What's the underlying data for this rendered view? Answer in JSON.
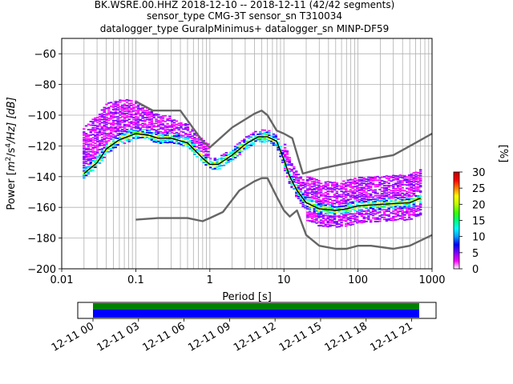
{
  "chart_data": [
    {
      "type": "heatmap",
      "title_lines": [
        "BK.WSRE.00.HHZ   2018-12-10 -- 2018-12-11  (42/42 segments)",
        "sensor_type CMG-3T sensor_sn T310034",
        "datalogger_type GuralpMinimus+ datalogger_sn MINP-DF59"
      ],
      "xlabel": "Period [s]",
      "ylabel": "Power [m2/s4/Hz] [dB]",
      "ylabel_parts": {
        "before": "Power [",
        "m": "m",
        "exp1": "2",
        "mid": "/s",
        "exp2": "4",
        "tail": "/Hz] [dB]"
      },
      "x_scale": "log",
      "xlim": [
        0.01,
        1000
      ],
      "ylim": [
        -200,
        -50
      ],
      "x_ticks": [
        0.01,
        0.1,
        1,
        10,
        100,
        1000
      ],
      "x_tick_labels": [
        "0.01",
        "0.1",
        "1",
        "10",
        "100",
        "1000"
      ],
      "y_ticks": [
        -200,
        -180,
        -160,
        -140,
        -120,
        -100,
        -80,
        -60
      ],
      "y_tick_labels": [
        "−200",
        "−180",
        "−160",
        "−140",
        "−120",
        "−100",
        "−80",
        "−60"
      ],
      "grid": true,
      "colorbar": {
        "label": "[%]",
        "range": [
          0,
          30
        ],
        "ticks": [
          0,
          5,
          10,
          15,
          20,
          25,
          30
        ],
        "tick_labels": [
          "0",
          "5",
          "10",
          "15",
          "20",
          "25",
          "30"
        ],
        "colormap": [
          "#ffffff",
          "#ff00ff",
          "#8000ff",
          "#0000ff",
          "#00a0ff",
          "#00ffff",
          "#00ff80",
          "#40ff00",
          "#c0ff00",
          "#ffff00",
          "#ff8000",
          "#ff0000",
          "#c00000"
        ]
      },
      "series": [
        {
          "name": "mode",
          "color": "#000000",
          "x": [
            0.02,
            0.025,
            0.03,
            0.04,
            0.06,
            0.1,
            0.15,
            0.2,
            0.3,
            0.5,
            0.8,
            1.0,
            1.3,
            2.0,
            3.0,
            4.5,
            6.0,
            8.0,
            10,
            12,
            15,
            20,
            30,
            50,
            70,
            100,
            200,
            500,
            700
          ],
          "y": [
            -138,
            -134,
            -131,
            -122,
            -116,
            -112,
            -113,
            -115,
            -115,
            -118,
            -128,
            -132,
            -132,
            -126,
            -119,
            -114,
            -114,
            -117,
            -129,
            -140,
            -149,
            -157,
            -161,
            -162,
            -161,
            -159,
            -158,
            -157,
            -154
          ]
        },
        {
          "name": "noise-model-high",
          "color": "#666666",
          "x": [
            0.1,
            0.17,
            0.4,
            0.8,
            1.0,
            2.0,
            4.0,
            5.0,
            6.0,
            8.0,
            10,
            13,
            18,
            30,
            60,
            100,
            300,
            600,
            1000
          ],
          "y": [
            -91,
            -97,
            -97,
            -117,
            -121,
            -108,
            -99,
            -97,
            -100,
            -110,
            -112,
            -115,
            -138,
            -135,
            -132,
            -130,
            -126,
            -118,
            -112
          ]
        },
        {
          "name": "noise-model-low",
          "color": "#666666",
          "x": [
            0.1,
            0.2,
            0.5,
            0.8,
            1.0,
            1.5,
            2.5,
            4.0,
            5.0,
            6.0,
            8.0,
            10,
            12,
            15,
            20,
            30,
            50,
            70,
            100,
            150,
            300,
            500,
            1000
          ],
          "y": [
            -168,
            -167,
            -167,
            -169,
            -167,
            -163,
            -149,
            -143,
            -141,
            -141,
            -153,
            -162,
            -166,
            -162,
            -178,
            -185,
            -187,
            -187,
            -185,
            -185,
            -187,
            -185,
            -178
          ]
        }
      ]
    },
    {
      "type": "heatmap",
      "title": "",
      "time_tick_labels": [
        "12-11 00",
        "12-11 03",
        "12-11 06",
        "12-11 09",
        "12-11 12",
        "12-11 15",
        "12-11 18",
        "12-11 21"
      ],
      "coverage_start_hour": 0,
      "coverage_end_hour": 21.5,
      "rows": [
        {
          "name": "data",
          "color": "#008000"
        },
        {
          "name": "used",
          "color": "#0000ff"
        }
      ]
    }
  ]
}
